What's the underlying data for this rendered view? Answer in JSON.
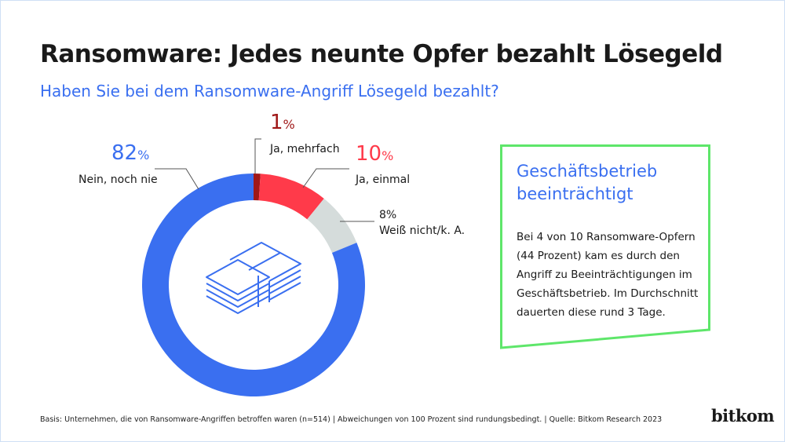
{
  "title": "Ransomware: Jedes neunte Opfer bezahlt Lösegeld",
  "subtitle": "Haben Sie bei dem Ransomware-Angriff Lösegeld bezahlt?",
  "chart_data": {
    "type": "pie",
    "donut": true,
    "slices": [
      {
        "label": "Ja, mehrfach",
        "value": 1,
        "display": "1",
        "color": "#a01818"
      },
      {
        "label": "Ja, einmal",
        "value": 10,
        "display": "10",
        "color": "#ff3a4a"
      },
      {
        "label": "Weiß nicht/k. A.",
        "value": 8,
        "display": "8",
        "color": "#d5dcdb"
      },
      {
        "label": "Nein, noch nie",
        "value": 82,
        "display": "82",
        "color": "#3a6ff0"
      }
    ],
    "unit": "%",
    "center_icon": "money-stack-icon"
  },
  "box": {
    "title": "Geschäftsbetrieb beeinträchtigt",
    "body": "Bei 4 von 10 Ransomware-Opfern (44 Prozent) kam es durch den Angriff zu Beeinträchtigungen im Geschäftsbetrieb. Im Durchschnitt dauerten diese rund 3 Tage.",
    "border_color": "#5ee66a"
  },
  "footer": "Basis: Unternehmen, die von Ransomware-Angriffen betroffen waren (n=514) | Abweichungen von 100 Prozent sind rundungsbedingt. | Quelle: Bitkom Research 2023",
  "logo": "bitkom"
}
